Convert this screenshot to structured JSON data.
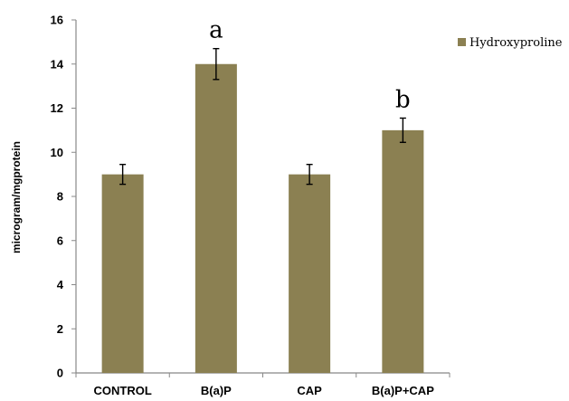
{
  "chart_data": {
    "type": "bar",
    "categories": [
      "CONTROL",
      "B(a)P",
      "CAP",
      "B(a)P+CAP"
    ],
    "series": [
      {
        "name": "Hydroxyproline",
        "values": [
          9,
          14,
          9,
          11
        ],
        "errors": [
          0.45,
          0.7,
          0.45,
          0.55
        ]
      }
    ],
    "annotations": [
      "",
      "a",
      "",
      "b"
    ],
    "title": "",
    "xlabel": "",
    "ylabel": "microgram/mgprotein",
    "ylim": [
      0,
      16
    ],
    "yticks": [
      0,
      2,
      4,
      6,
      8,
      10,
      12,
      14,
      16
    ],
    "grid": false,
    "legend": "top-right",
    "colors": {
      "bar": "#8b8052",
      "axis": "#888888",
      "error": "#000000"
    }
  }
}
